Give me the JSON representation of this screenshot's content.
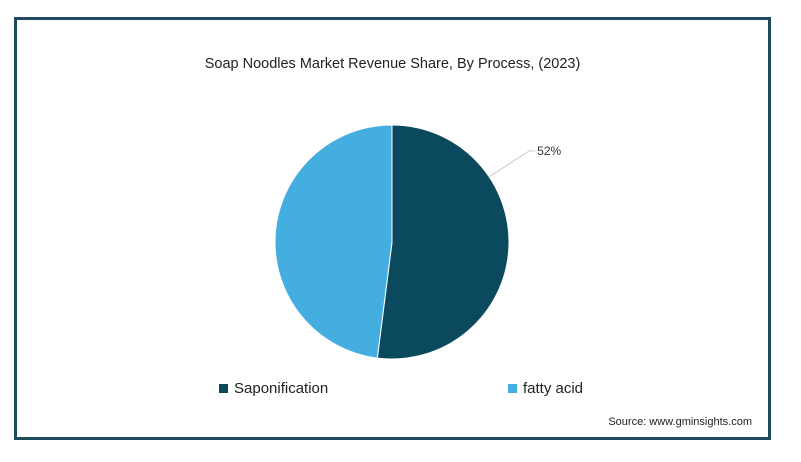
{
  "chart_data": {
    "type": "pie",
    "title": "Soap Noodles Market Revenue Share, By Process,  (2023)",
    "slices": [
      {
        "name": "Saponification",
        "value": 52,
        "color": "#0b4a5e",
        "label": "52%"
      },
      {
        "name": "fatty acid",
        "value": 48,
        "color": "#45aee0",
        "label": ""
      }
    ],
    "legend_position": "bottom",
    "source": "Source: www.gminsights.com"
  }
}
